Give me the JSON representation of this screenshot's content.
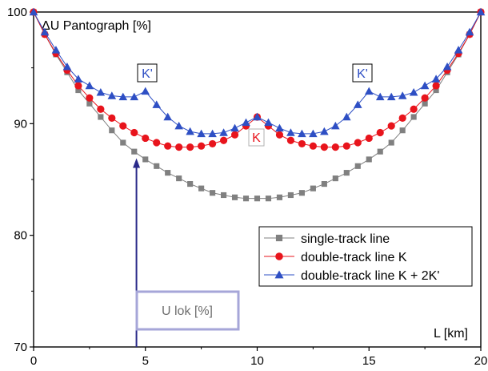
{
  "chart_data": {
    "type": "line",
    "title": "",
    "xlabel": "L [km]",
    "ylabel": "ΔU Pantograph [%]",
    "xlim": [
      0,
      20
    ],
    "ylim": [
      70,
      100
    ],
    "x_ticks": [
      0,
      5,
      10,
      15,
      20
    ],
    "y_ticks": [
      70,
      80,
      90,
      100
    ],
    "grid": false,
    "legend_position": "bottom-right",
    "x": [
      0,
      0.5,
      1,
      1.5,
      2,
      2.5,
      3,
      3.5,
      4,
      4.5,
      5,
      5.5,
      6,
      6.5,
      7,
      7.5,
      8,
      8.5,
      9,
      9.5,
      10,
      10.5,
      11,
      11.5,
      12,
      12.5,
      13,
      13.5,
      14,
      14.5,
      15,
      15.5,
      16,
      16.5,
      17,
      17.5,
      18,
      18.5,
      19,
      19.5,
      20
    ],
    "series": [
      {
        "name": "single-track line",
        "color": "#808080",
        "marker": "square",
        "values": [
          100,
          98.0,
          96.2,
          94.6,
          93.0,
          91.8,
          90.6,
          89.4,
          88.3,
          87.5,
          86.8,
          86.2,
          85.6,
          85.1,
          84.6,
          84.2,
          83.8,
          83.6,
          83.4,
          83.3,
          83.3,
          83.3,
          83.4,
          83.6,
          83.8,
          84.2,
          84.6,
          85.1,
          85.6,
          86.2,
          86.8,
          87.5,
          88.3,
          89.4,
          90.6,
          91.8,
          93.0,
          94.6,
          96.2,
          98.0,
          100
        ]
      },
      {
        "name": "double-track line K",
        "color": "#e8141c",
        "marker": "circle",
        "values": [
          100,
          98.0,
          96.3,
          94.8,
          93.4,
          92.3,
          91.3,
          90.5,
          89.8,
          89.2,
          88.7,
          88.3,
          88.0,
          87.9,
          87.9,
          88.0,
          88.2,
          88.5,
          89.0,
          89.8,
          90.6,
          89.8,
          89.0,
          88.5,
          88.2,
          88.0,
          87.9,
          87.9,
          88.0,
          88.3,
          88.7,
          89.2,
          89.8,
          90.5,
          91.3,
          92.3,
          93.4,
          94.8,
          96.3,
          98.0,
          100
        ]
      },
      {
        "name": "double-track line K + 2K'",
        "color": "#2e4fc4",
        "marker": "triangle",
        "values": [
          100,
          98.2,
          96.6,
          95.1,
          94.0,
          93.4,
          92.8,
          92.5,
          92.4,
          92.4,
          92.9,
          91.7,
          90.6,
          89.8,
          89.3,
          89.1,
          89.1,
          89.2,
          89.6,
          90.1,
          90.6,
          90.1,
          89.6,
          89.2,
          89.1,
          89.1,
          89.3,
          89.8,
          90.6,
          91.7,
          92.9,
          92.4,
          92.4,
          92.5,
          92.8,
          93.4,
          94.0,
          95.1,
          96.6,
          98.2,
          100
        ]
      }
    ],
    "annotations": {
      "k_label": "K",
      "k_prime_left": "K'",
      "k_prime_right": "K'",
      "u_lok_label": "U lok [%]",
      "u_lok_arrow_x": 4.6,
      "u_lok_arrow_top_y": 86.9
    }
  },
  "colors": {
    "axis": "#000000",
    "arrow": "#2a2a8a",
    "u_lok_box": "#a6a6d8",
    "u_lok_text": "#6e6e6e",
    "k_box_border": "#b0b0b0"
  }
}
